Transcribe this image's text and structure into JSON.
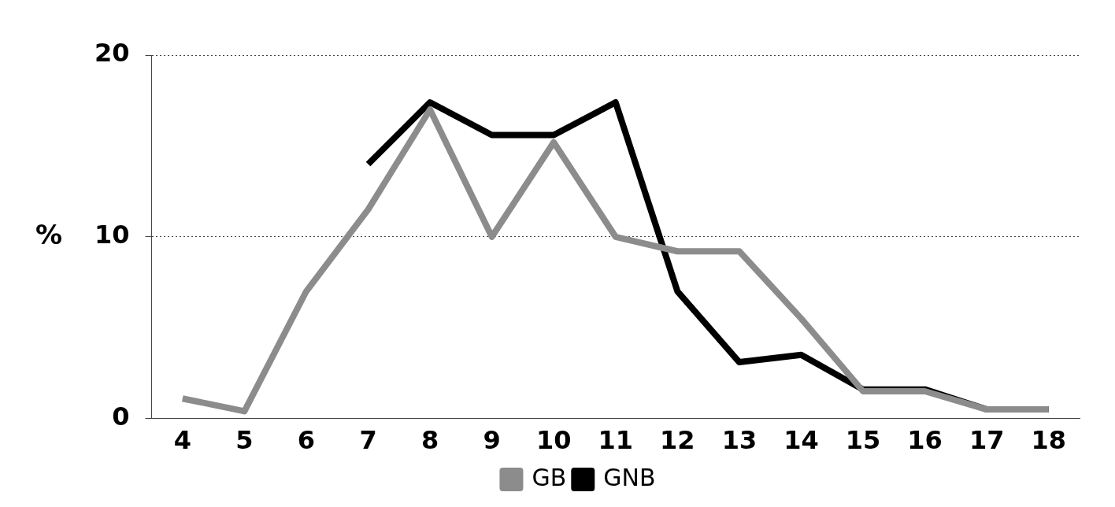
{
  "chart_data": {
    "type": "line",
    "ylabel": "%",
    "categories": [
      "4",
      "5",
      "6",
      "7",
      "8",
      "9",
      "10",
      "11",
      "12",
      "13",
      "14",
      "15",
      "16",
      "17",
      "18"
    ],
    "series": [
      {
        "name": "GB",
        "color": "#8c8c8c",
        "values": [
          1.1,
          0.4,
          7,
          11.5,
          17,
          10,
          15.2,
          10,
          9.2,
          9.2,
          5.5,
          1.5,
          1.5,
          0.5,
          0.5
        ]
      },
      {
        "name": "GNB",
        "color": "#000000",
        "values": [
          null,
          null,
          null,
          14,
          17.4,
          15.6,
          15.6,
          17.4,
          7,
          3.1,
          3.5,
          1.6,
          1.6,
          0.5,
          0.5
        ]
      }
    ],
    "ylim": [
      0,
      20
    ],
    "yticks": [
      0,
      10,
      20
    ],
    "grid": "y",
    "legend": "bottom",
    "marker": "none",
    "line_style": "solid"
  }
}
